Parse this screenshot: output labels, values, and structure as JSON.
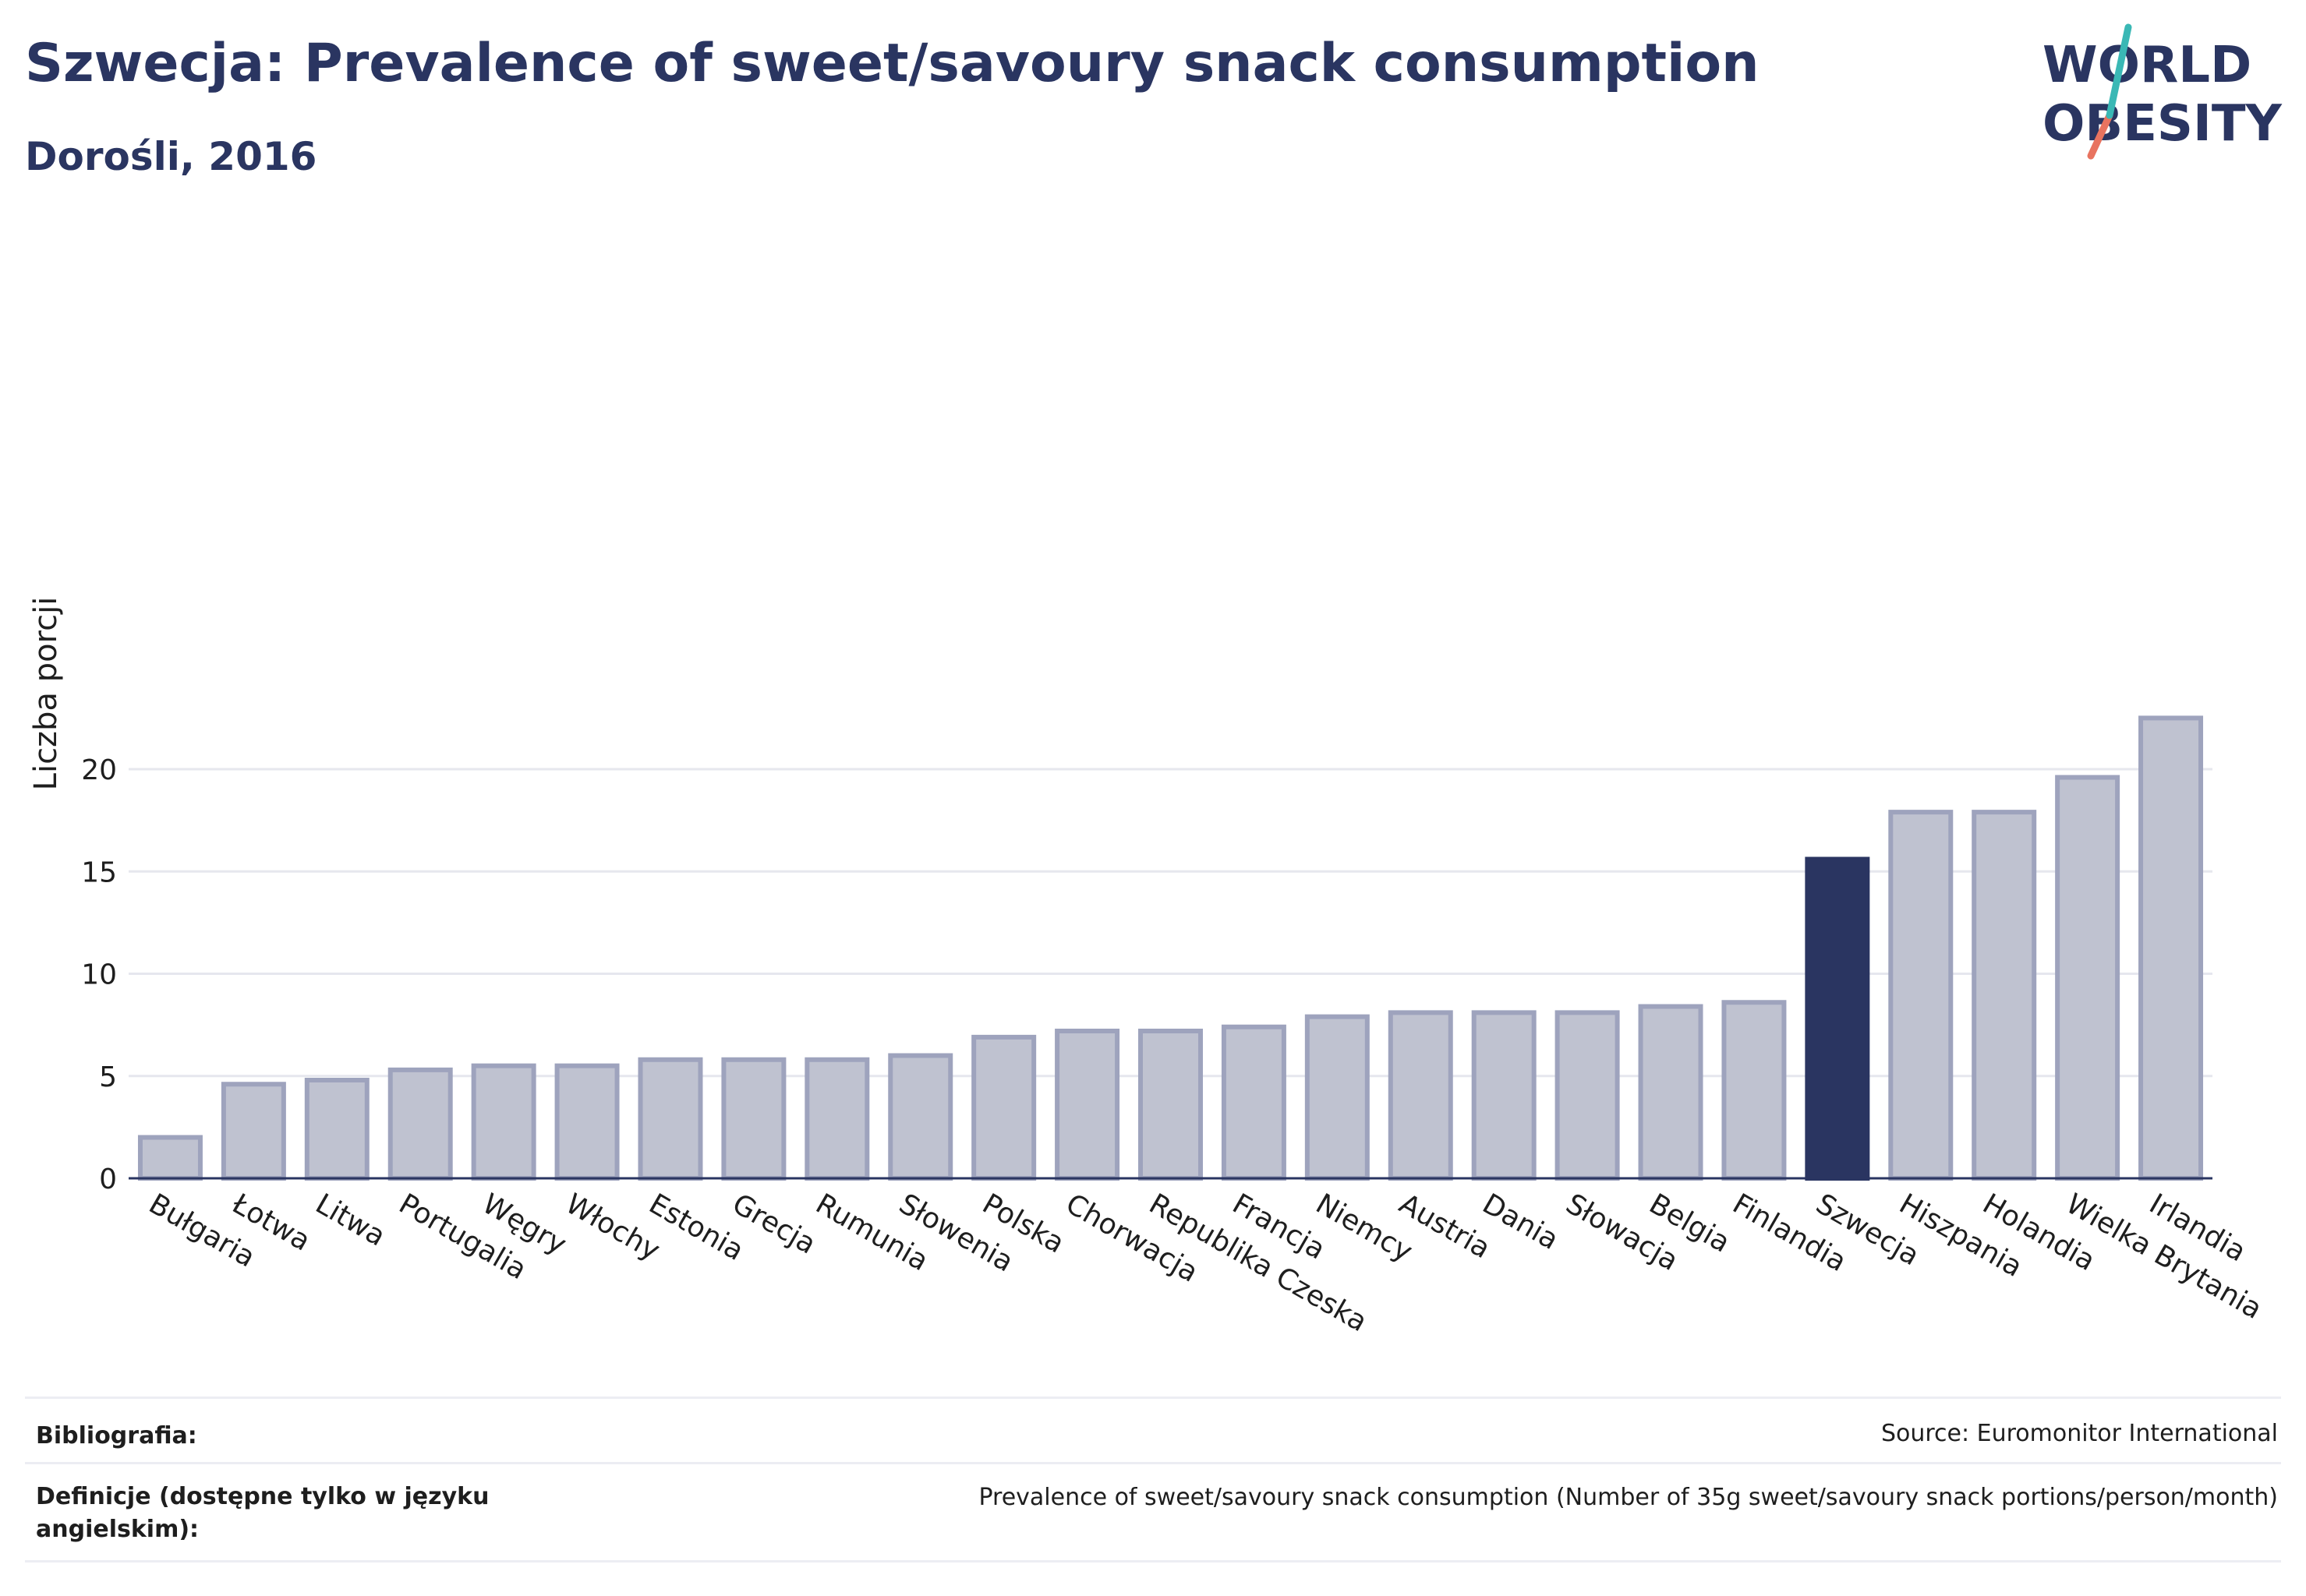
{
  "header": {
    "title": "Szwecja: Prevalence of sweet/savoury snack consumption",
    "subtitle": "Dorośli, 2016"
  },
  "logo": {
    "line1": "WORLD",
    "line2": "OBESITY",
    "slash_colors": [
      "#3ab8b5",
      "#e8735f"
    ]
  },
  "chart_data": {
    "type": "bar",
    "ylabel": "Liczba porcji",
    "xlabel": "",
    "ylim": [
      0,
      23
    ],
    "yticks": [
      0,
      5,
      10,
      15,
      20
    ],
    "grid": true,
    "categories": [
      "Bułgaria",
      "Łotwa",
      "Litwa",
      "Portugalia",
      "Węgry",
      "Włochy",
      "Estonia",
      "Grecja",
      "Rumunia",
      "Słowenia",
      "Polska",
      "Chorwacja",
      "Republika Czeska",
      "Francja",
      "Niemcy",
      "Austria",
      "Dania",
      "Słowacja",
      "Belgia",
      "Finlandia",
      "Szwecja",
      "Hiszpania",
      "Holandia",
      "Wielka Brytania",
      "Irlandia"
    ],
    "values": [
      2.0,
      4.6,
      4.8,
      5.3,
      5.5,
      5.5,
      5.8,
      5.8,
      5.8,
      6.0,
      6.9,
      7.2,
      7.2,
      7.4,
      7.9,
      8.1,
      8.1,
      8.1,
      8.4,
      8.6,
      15.6,
      17.9,
      17.9,
      19.6,
      22.5
    ],
    "highlight": "Szwecja",
    "colors": {
      "bar": "#bfc2d0",
      "bar_stroke": "#9ea3bd",
      "highlight": "#2a3561",
      "grid": "#e6e7ee",
      "axis": "#2a3561"
    }
  },
  "footer": {
    "bibliography_label": "Bibliografia:",
    "bibliography_value": "Source: Euromonitor International",
    "definitions_label": "Definicje (dostępne tylko w języku angielskim):",
    "definitions_value": "Prevalence of sweet/savoury snack consumption (Number of 35g sweet/savoury snack portions/person/month)"
  }
}
